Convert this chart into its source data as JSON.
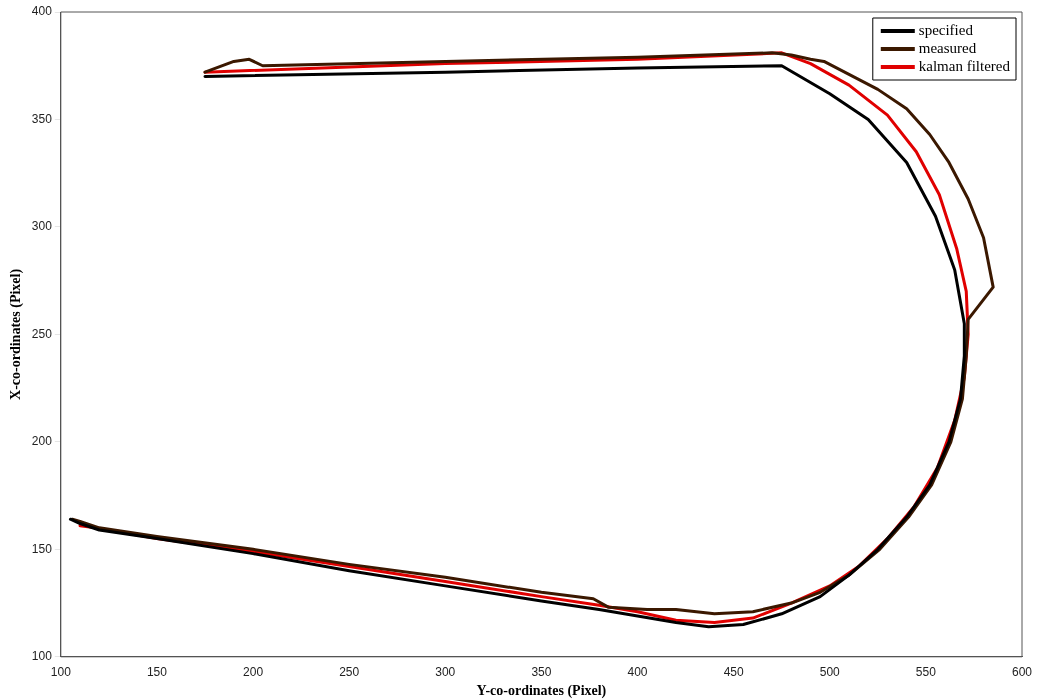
{
  "chart_data": {
    "type": "line",
    "xlabel": "Y-co-ordinates (Pixel)",
    "ylabel": "X-co-ordinates (Pixel)",
    "xlim": [
      100,
      600
    ],
    "xticks": [
      100,
      150,
      200,
      250,
      300,
      350,
      400,
      450,
      500,
      550,
      600
    ],
    "ylim": [
      100,
      400
    ],
    "yticks": [
      100,
      150,
      200,
      250,
      300,
      350,
      400
    ],
    "grid": false,
    "legend": "top right",
    "marker": "none",
    "line_style": "solid",
    "series": [
      {
        "name": "specified",
        "color": "#000000",
        "x": [
          175,
          300,
          400,
          475,
          500,
          520,
          540,
          555,
          565,
          570,
          570,
          568,
          562,
          552,
          540,
          525,
          510,
          495,
          475,
          455,
          437,
          420,
          400,
          380,
          350,
          300,
          250,
          200,
          150,
          120,
          110,
          105
        ],
        "values": [
          370,
          372,
          374,
          375,
          362,
          350,
          330,
          305,
          280,
          255,
          240,
          220,
          200,
          180,
          165,
          150,
          138,
          128,
          120,
          115,
          114,
          116,
          119,
          122,
          126,
          133,
          140,
          148,
          155,
          159,
          162,
          164
        ]
      },
      {
        "name": "measured",
        "color": "#3b1800",
        "x": [
          175,
          190,
          198,
          205,
          300,
          400,
          470,
          480,
          490,
          497,
          510,
          525,
          540,
          552,
          562,
          572,
          580,
          585,
          572,
          571,
          569,
          563,
          553,
          541,
          526,
          510,
          495,
          480,
          460,
          440,
          420,
          405,
          385,
          377,
          350,
          300,
          250,
          200,
          150,
          120,
          110,
          106
        ],
        "values": [
          372,
          377,
          378,
          375,
          377,
          379,
          381,
          380,
          378,
          377,
          371,
          364,
          355,
          343,
          330,
          313,
          295,
          272,
          257,
          240,
          220,
          200,
          180,
          165,
          150,
          138,
          130,
          125,
          121,
          120,
          122,
          122,
          123,
          127,
          130,
          137,
          143,
          150,
          156,
          160,
          163,
          164
        ]
      },
      {
        "name": "kalman filtered",
        "color": "#e00000",
        "x": [
          175,
          300,
          400,
          475,
          490,
          510,
          530,
          545,
          557,
          566,
          571,
          572,
          570,
          565,
          556,
          544,
          530,
          515,
          500,
          480,
          460,
          440,
          420,
          400,
          380,
          350,
          300,
          250,
          200,
          150,
          118,
          110
        ],
        "values": [
          372,
          376,
          378,
          381,
          376,
          366,
          352,
          335,
          315,
          290,
          270,
          250,
          230,
          210,
          188,
          170,
          155,
          142,
          133,
          125,
          118,
          116,
          117,
          121,
          124,
          128,
          135,
          142,
          149,
          155,
          160,
          161
        ]
      }
    ]
  }
}
